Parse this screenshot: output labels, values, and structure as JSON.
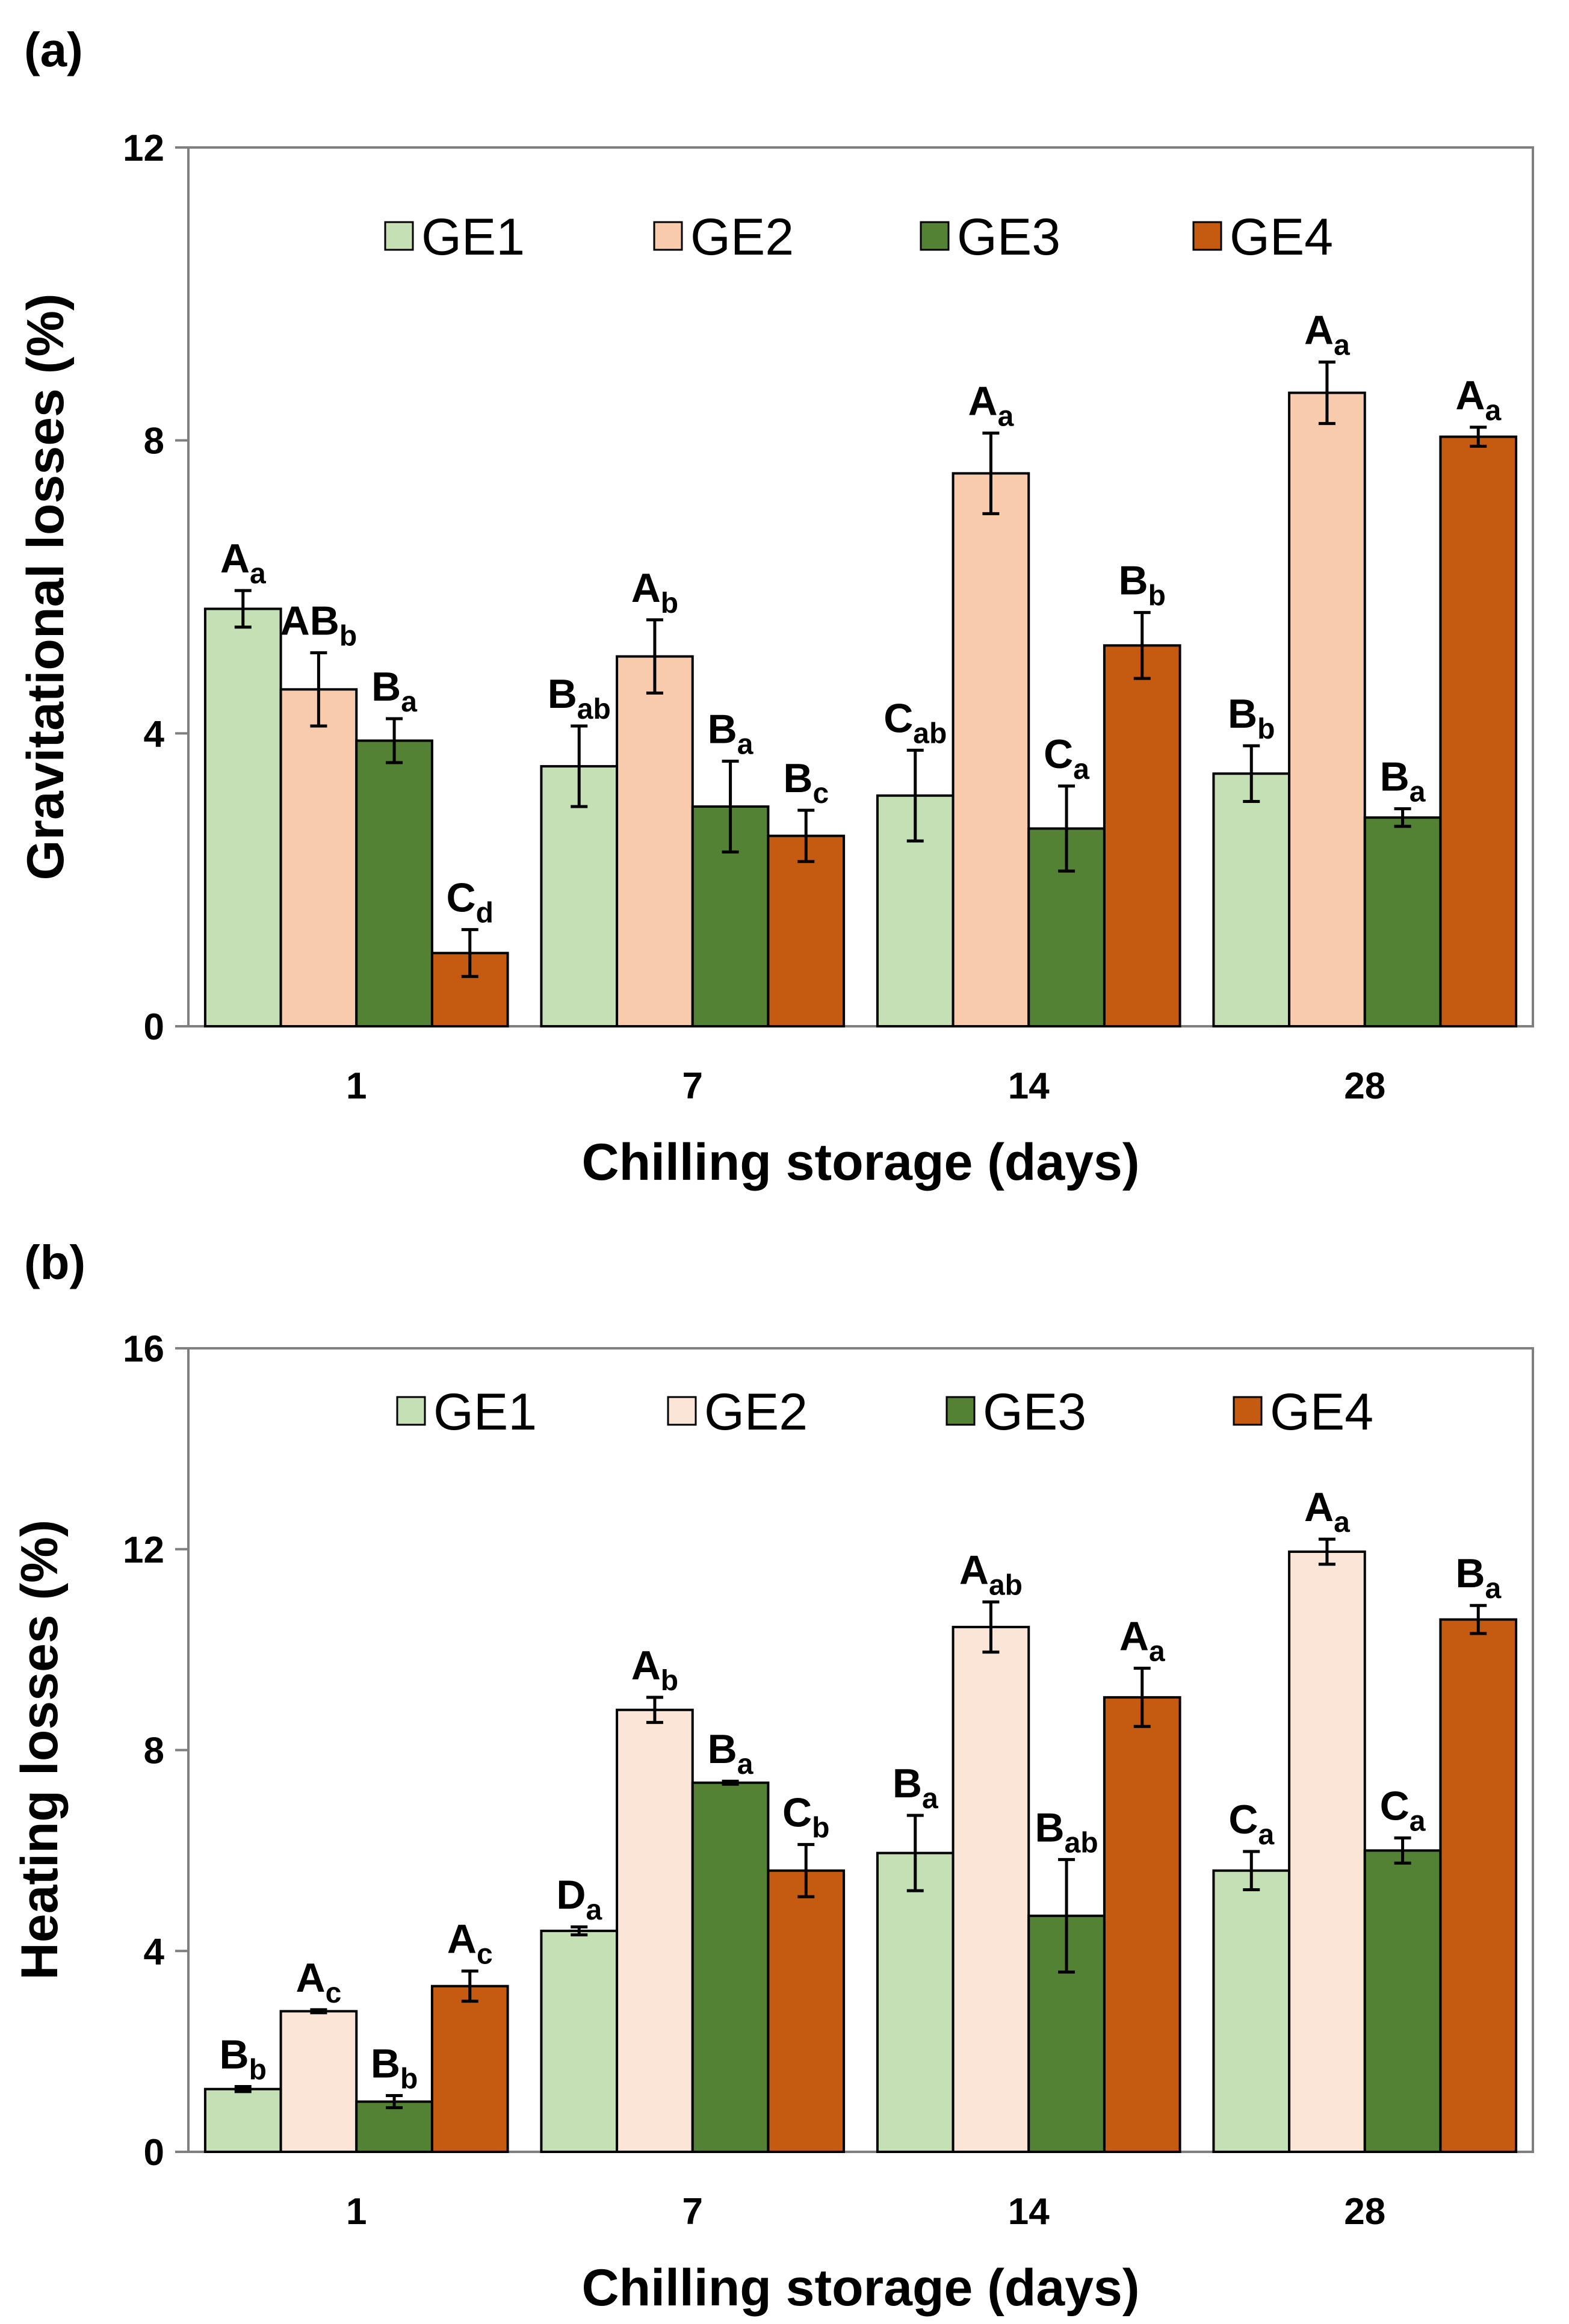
{
  "chart_data": [
    {
      "type": "bar",
      "panel_label": "(a)",
      "categories": [
        "1",
        "7",
        "14",
        "28"
      ],
      "series": [
        {
          "name": "GE1",
          "color": "#c5e0b4",
          "values": [
            5.7,
            3.55,
            3.15,
            3.45
          ],
          "errors": [
            0.25,
            0.55,
            0.62,
            0.38
          ],
          "letters": [
            [
              "A",
              "a"
            ],
            [
              "B",
              "ab"
            ],
            [
              "C",
              "ab"
            ],
            [
              "B",
              "b"
            ]
          ]
        },
        {
          "name": "GE2",
          "color": "#f8cbad",
          "values": [
            4.6,
            5.05,
            7.55,
            8.65
          ],
          "errors": [
            0.5,
            0.5,
            0.55,
            0.42
          ],
          "letters": [
            [
              "AB",
              "b"
            ],
            [
              "A",
              "b"
            ],
            [
              "A",
              "a"
            ],
            [
              "A",
              "a"
            ]
          ]
        },
        {
          "name": "GE3",
          "color": "#548235",
          "values": [
            3.9,
            3.0,
            2.7,
            2.85
          ],
          "errors": [
            0.3,
            0.62,
            0.58,
            0.12
          ],
          "letters": [
            [
              "B",
              "a"
            ],
            [
              "B",
              "a"
            ],
            [
              "C",
              "a"
            ],
            [
              "B",
              "a"
            ]
          ]
        },
        {
          "name": "GE4",
          "color": "#c55a11",
          "values": [
            1.0,
            2.6,
            5.2,
            8.05
          ],
          "errors": [
            0.32,
            0.35,
            0.45,
            0.13
          ],
          "letters": [
            [
              "C",
              "d"
            ],
            [
              "B",
              "c"
            ],
            [
              "B",
              "b"
            ],
            [
              "A",
              "a"
            ]
          ]
        }
      ],
      "xlabel": "Chilling storage (days)",
      "ylabel": "Gravitational losses  (%)",
      "ylim": [
        0,
        12
      ],
      "yticks": [
        "0",
        "4",
        "8",
        "12"
      ],
      "legend": "top"
    },
    {
      "type": "bar",
      "panel_label": "(b)",
      "categories": [
        "1",
        "7",
        "14",
        "28"
      ],
      "series": [
        {
          "name": "GE1",
          "color": "#c5e0b4",
          "values": [
            1.25,
            4.4,
            5.95,
            5.6
          ],
          "errors": [
            0.05,
            0.08,
            0.75,
            0.38
          ],
          "letters": [
            [
              "B",
              "b"
            ],
            [
              "D",
              "a"
            ],
            [
              "B",
              "a"
            ],
            [
              "C",
              "a"
            ]
          ]
        },
        {
          "name": "GE2",
          "color": "#fbe5d6",
          "values": [
            2.8,
            8.8,
            10.45,
            11.95
          ],
          "errors": [
            0.03,
            0.25,
            0.5,
            0.25
          ],
          "letters": [
            [
              "A",
              "c"
            ],
            [
              "A",
              "b"
            ],
            [
              "A",
              "ab"
            ],
            [
              "A",
              "a"
            ]
          ]
        },
        {
          "name": "GE3",
          "color": "#548235",
          "values": [
            1.0,
            7.35,
            4.7,
            6.0
          ],
          "errors": [
            0.12,
            0.03,
            1.12,
            0.25
          ],
          "letters": [
            [
              "B",
              "b"
            ],
            [
              "B",
              "a"
            ],
            [
              "B",
              "ab"
            ],
            [
              "C",
              "a"
            ]
          ]
        },
        {
          "name": "GE4",
          "color": "#c55a11",
          "values": [
            3.3,
            5.6,
            9.05,
            10.6
          ],
          "errors": [
            0.3,
            0.52,
            0.58,
            0.28
          ],
          "letters": [
            [
              "A",
              "c"
            ],
            [
              "C",
              "b"
            ],
            [
              "A",
              "a"
            ],
            [
              "B",
              "a"
            ]
          ]
        }
      ],
      "xlabel": "Chilling storage (days)",
      "ylabel": "Heating losses (%)",
      "ylim": [
        0,
        16
      ],
      "yticks": [
        "0",
        "4",
        "8",
        "12",
        "16"
      ],
      "legend": "top"
    }
  ]
}
